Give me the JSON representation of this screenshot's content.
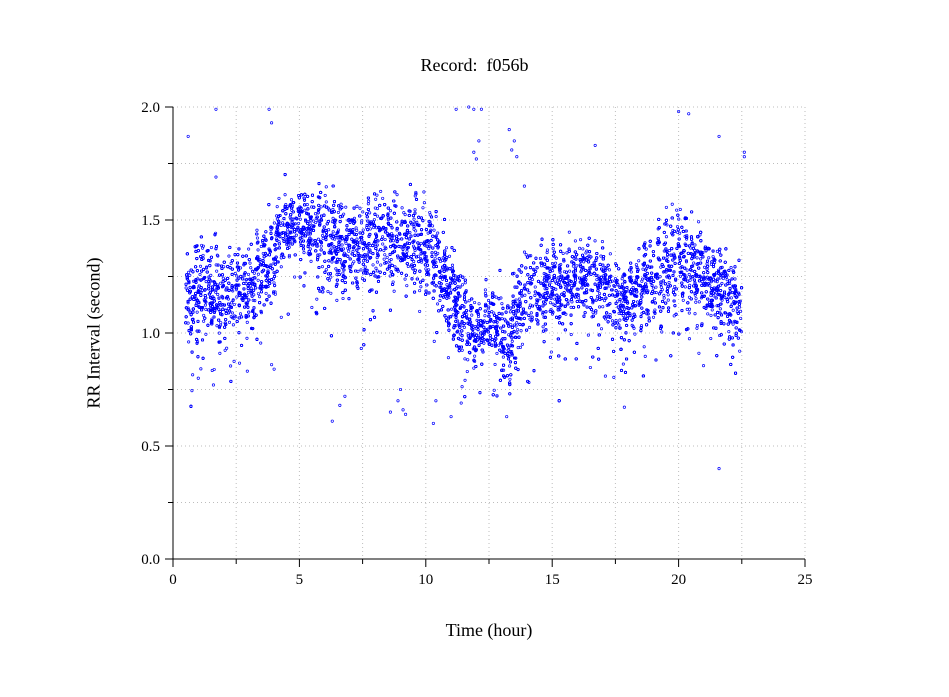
{
  "chart_data": {
    "type": "scatter",
    "title": "Record:  f056b",
    "xlabel": "Time (hour)",
    "ylabel": "RR Interval (second)",
    "xlim": [
      0,
      25
    ],
    "ylim": [
      0.0,
      2.0
    ],
    "x_ticks": [
      "0",
      "5",
      "10",
      "15",
      "20",
      "25"
    ],
    "y_ticks": [
      "0.0",
      "0.5",
      "1.0",
      "1.5",
      "2.0"
    ],
    "grid": true,
    "marker_color": "#0000ff",
    "series": [
      {
        "x_range": [
          0.5,
          22.5
        ],
        "band_profile": [
          {
            "x": 0.5,
            "center": 1.15,
            "spread": 0.18
          },
          {
            "x": 1.0,
            "center": 1.2,
            "spread": 0.2
          },
          {
            "x": 2.0,
            "center": 1.15,
            "spread": 0.2
          },
          {
            "x": 3.0,
            "center": 1.2,
            "spread": 0.2
          },
          {
            "x": 3.7,
            "center": 1.3,
            "spread": 0.2
          },
          {
            "x": 4.3,
            "center": 1.45,
            "spread": 0.15
          },
          {
            "x": 5.0,
            "center": 1.5,
            "spread": 0.12
          },
          {
            "x": 6.0,
            "center": 1.42,
            "spread": 0.17
          },
          {
            "x": 7.0,
            "center": 1.38,
            "spread": 0.18
          },
          {
            "x": 8.0,
            "center": 1.4,
            "spread": 0.18
          },
          {
            "x": 9.0,
            "center": 1.42,
            "spread": 0.18
          },
          {
            "x": 10.0,
            "center": 1.4,
            "spread": 0.18
          },
          {
            "x": 10.8,
            "center": 1.25,
            "spread": 0.22
          },
          {
            "x": 11.5,
            "center": 1.05,
            "spread": 0.17
          },
          {
            "x": 12.0,
            "center": 1.0,
            "spread": 0.13
          },
          {
            "x": 12.5,
            "center": 1.05,
            "spread": 0.13
          },
          {
            "x": 13.2,
            "center": 0.95,
            "spread": 0.2
          },
          {
            "x": 14.0,
            "center": 1.2,
            "spread": 0.17
          },
          {
            "x": 15.0,
            "center": 1.2,
            "spread": 0.17
          },
          {
            "x": 16.0,
            "center": 1.25,
            "spread": 0.17
          },
          {
            "x": 17.0,
            "center": 1.2,
            "spread": 0.17
          },
          {
            "x": 18.0,
            "center": 1.12,
            "spread": 0.17
          },
          {
            "x": 19.0,
            "center": 1.25,
            "spread": 0.18
          },
          {
            "x": 20.0,
            "center": 1.35,
            "spread": 0.22
          },
          {
            "x": 21.0,
            "center": 1.25,
            "spread": 0.2
          },
          {
            "x": 22.0,
            "center": 1.15,
            "spread": 0.2
          },
          {
            "x": 22.5,
            "center": 1.1,
            "spread": 0.2
          }
        ],
        "outliers": [
          [
            0.6,
            1.87
          ],
          [
            1.7,
            1.99
          ],
          [
            1.7,
            1.69
          ],
          [
            1.6,
            0.77
          ],
          [
            3.8,
            1.99
          ],
          [
            3.9,
            1.93
          ],
          [
            6.3,
            0.61
          ],
          [
            6.6,
            0.68
          ],
          [
            6.8,
            0.72
          ],
          [
            8.6,
            0.65
          ],
          [
            8.9,
            0.7
          ],
          [
            9.0,
            0.75
          ],
          [
            9.1,
            0.66
          ],
          [
            9.2,
            0.64
          ],
          [
            10.3,
            0.6
          ],
          [
            10.4,
            0.7
          ],
          [
            11.2,
            1.99
          ],
          [
            11.0,
            0.63
          ],
          [
            11.7,
            2.0
          ],
          [
            11.9,
            1.99
          ],
          [
            12.2,
            1.99
          ],
          [
            11.9,
            1.8
          ],
          [
            12.0,
            1.77
          ],
          [
            12.1,
            1.85
          ],
          [
            13.3,
            1.9
          ],
          [
            13.5,
            1.85
          ],
          [
            13.6,
            1.78
          ],
          [
            13.4,
            1.81
          ],
          [
            13.9,
            1.65
          ],
          [
            16.7,
            1.83
          ],
          [
            20.0,
            1.98
          ],
          [
            20.4,
            1.97
          ],
          [
            21.6,
            1.87
          ],
          [
            22.6,
            1.8
          ],
          [
            22.6,
            1.78
          ],
          [
            21.6,
            0.4
          ],
          [
            13.2,
            0.63
          ],
          [
            11.4,
            0.69
          ],
          [
            4.0,
            0.84
          ],
          [
            3.9,
            0.86
          ],
          [
            1.0,
            0.8
          ]
        ]
      }
    ]
  }
}
